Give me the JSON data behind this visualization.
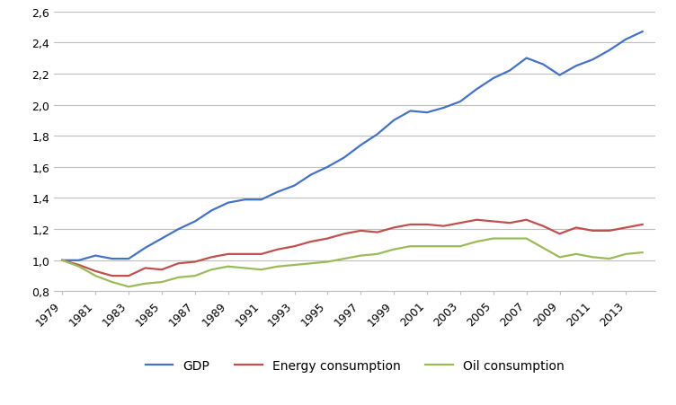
{
  "years": [
    1979,
    1980,
    1981,
    1982,
    1983,
    1984,
    1985,
    1986,
    1987,
    1988,
    1989,
    1990,
    1991,
    1992,
    1993,
    1994,
    1995,
    1996,
    1997,
    1998,
    1999,
    2000,
    2001,
    2002,
    2003,
    2004,
    2005,
    2006,
    2007,
    2008,
    2009,
    2010,
    2011,
    2012,
    2013,
    2014
  ],
  "gdp": [
    1.0,
    1.0,
    1.03,
    1.01,
    1.01,
    1.08,
    1.14,
    1.2,
    1.25,
    1.32,
    1.37,
    1.39,
    1.39,
    1.44,
    1.48,
    1.55,
    1.6,
    1.66,
    1.74,
    1.81,
    1.9,
    1.96,
    1.95,
    1.98,
    2.02,
    2.1,
    2.17,
    2.22,
    2.3,
    2.26,
    2.19,
    2.25,
    2.29,
    2.35,
    2.42,
    2.47
  ],
  "energy": [
    1.0,
    0.97,
    0.93,
    0.9,
    0.9,
    0.95,
    0.94,
    0.98,
    0.99,
    1.02,
    1.04,
    1.04,
    1.04,
    1.07,
    1.09,
    1.12,
    1.14,
    1.17,
    1.19,
    1.18,
    1.21,
    1.23,
    1.23,
    1.22,
    1.24,
    1.26,
    1.25,
    1.24,
    1.26,
    1.22,
    1.17,
    1.21,
    1.19,
    1.19,
    1.21,
    1.23
  ],
  "oil": [
    1.0,
    0.96,
    0.9,
    0.86,
    0.83,
    0.85,
    0.86,
    0.89,
    0.9,
    0.94,
    0.96,
    0.95,
    0.94,
    0.96,
    0.97,
    0.98,
    0.99,
    1.01,
    1.03,
    1.04,
    1.07,
    1.09,
    1.09,
    1.09,
    1.09,
    1.12,
    1.14,
    1.14,
    1.14,
    1.08,
    1.02,
    1.04,
    1.02,
    1.01,
    1.04,
    1.05
  ],
  "gdp_color": "#4472C4",
  "energy_color": "#C0504D",
  "oil_color": "#9BBB59",
  "background_color": "#FFFFFF",
  "grid_color": "#BFBFBF",
  "ylim": [
    0.8,
    2.6
  ],
  "yticks": [
    0.8,
    1.0,
    1.2,
    1.4,
    1.6,
    1.8,
    2.0,
    2.2,
    2.4,
    2.6
  ],
  "xtick_labels": [
    "1979",
    "1981",
    "1983",
    "1985",
    "1987",
    "1989",
    "1991",
    "1993",
    "1995",
    "1997",
    "1999",
    "2001",
    "2003",
    "2005",
    "2007",
    "2009",
    "2011",
    "2013"
  ],
  "legend_labels": [
    "GDP",
    "Energy consumption",
    "Oil consumption"
  ]
}
